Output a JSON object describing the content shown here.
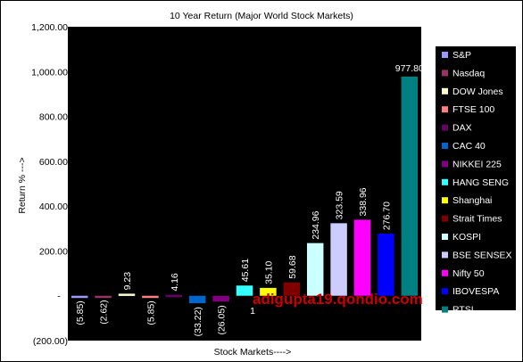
{
  "chart_data": {
    "type": "bar",
    "title": "10 Year Return (Major World Stock Markets)",
    "xlabel": "Stock Markets---->",
    "ylabel": "Return % --->",
    "ylim": [
      -200,
      1200
    ],
    "yticks": [
      1200,
      1000,
      800,
      600,
      400,
      200,
      0,
      -200
    ],
    "ytick_labels": [
      "1,200.00",
      "1,000.00",
      "800.00",
      "600.00",
      "400.00",
      "200.00",
      "-",
      "(200.00)"
    ],
    "grid": false,
    "legend_position": "right",
    "plot_background": "#000000",
    "legend_background": "#000000",
    "categories": [
      "S&P",
      "Nasdaq",
      "DOW Jones",
      "FTSE 100",
      "DAX",
      "CAC 40",
      "NIKKEI 225",
      "HANG SENG",
      "Shanghai",
      "Strait Times",
      "KOSPI",
      "BSE SENSEX",
      "Nifty 50",
      "IBOVESPA",
      "RTSI"
    ],
    "values": [
      -5.85,
      -2.62,
      9.23,
      -5.85,
      4.16,
      -33.22,
      -26.05,
      45.61,
      35.1,
      59.68,
      234.96,
      323.59,
      338.96,
      276.7,
      977.8
    ],
    "data_labels": [
      "(5.85)",
      "(2.62)",
      "9.23",
      "(5.85)",
      "4.16",
      "(33.22)",
      "(26.05)",
      "45.61",
      "35.10",
      "59.68",
      "234.96",
      "323.59",
      "338.96",
      "276.70",
      "977.80"
    ],
    "colors": [
      "#9999ff",
      "#993366",
      "#ffffcc",
      "#ff8080",
      "#660066",
      "#0066cc",
      "#800080",
      "#33ffff",
      "#ffff00",
      "#800000",
      "#ccffff",
      "#ccccff",
      "#ff00ff",
      "#0000ff",
      "#008080"
    ],
    "annotations": [
      "1"
    ],
    "watermark": "adigupta19.qondio.com"
  }
}
